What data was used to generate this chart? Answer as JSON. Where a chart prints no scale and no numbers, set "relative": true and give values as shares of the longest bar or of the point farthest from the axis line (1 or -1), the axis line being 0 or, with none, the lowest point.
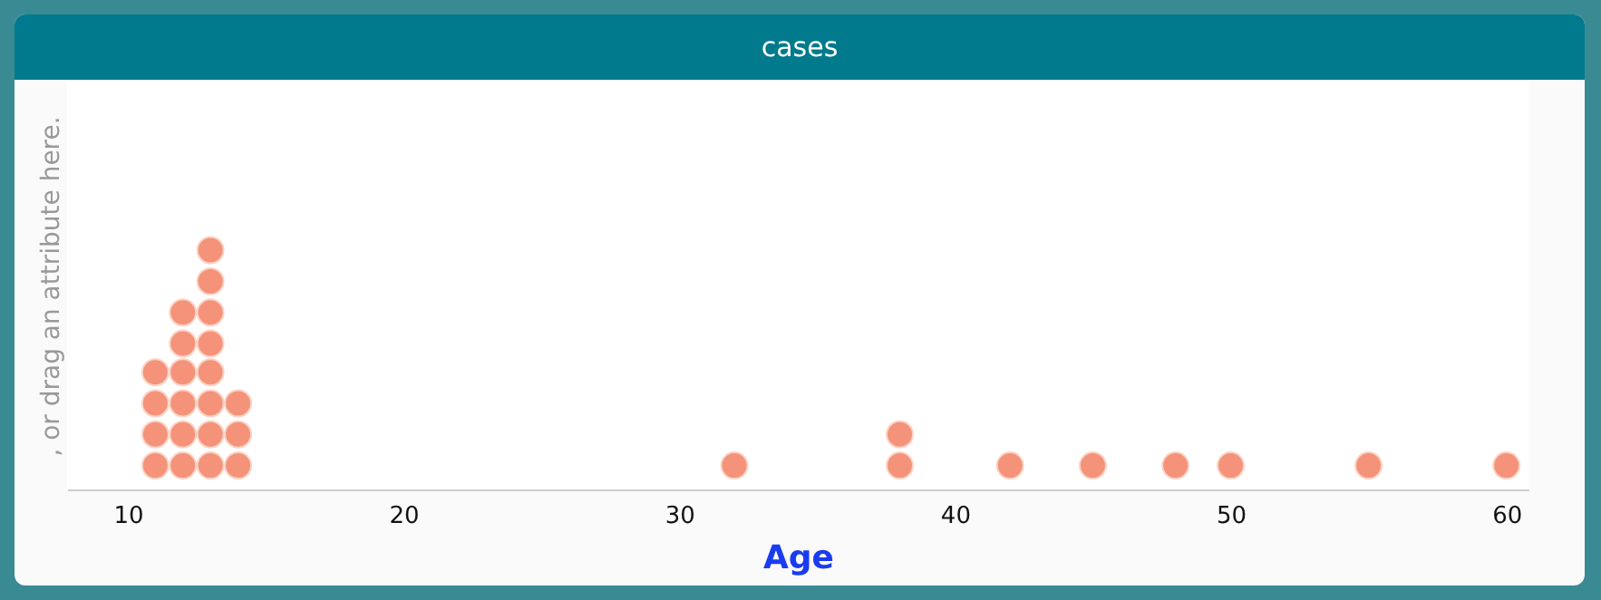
{
  "chart_data": {
    "type": "scatter",
    "title": "cases",
    "xlabel": "Age",
    "ylabel": ", or drag an attribute here.",
    "relative": true,
    "marker": "circle",
    "xlim": [
      7.8,
      60.8
    ],
    "xticks": [
      10,
      20,
      30,
      40,
      50,
      60
    ],
    "series": [
      {
        "color": "#f4937a",
        "x": [
          11,
          11,
          11,
          11,
          12,
          12,
          12,
          12,
          12,
          12,
          13,
          13,
          13,
          13,
          13,
          13,
          13,
          13,
          14,
          14,
          14,
          32,
          38,
          38,
          42,
          45,
          48,
          50,
          55,
          60
        ],
        "values": [
          0.1,
          0.23,
          0.36,
          0.49,
          0.1,
          0.23,
          0.36,
          0.49,
          0.61,
          0.74,
          0.1,
          0.23,
          0.36,
          0.49,
          0.61,
          0.74,
          0.87,
          1,
          0.1,
          0.23,
          0.36,
          0.1,
          0.1,
          0.23,
          0.1,
          0.1,
          0.1,
          0.1,
          0.1,
          0.1
        ]
      }
    ]
  }
}
